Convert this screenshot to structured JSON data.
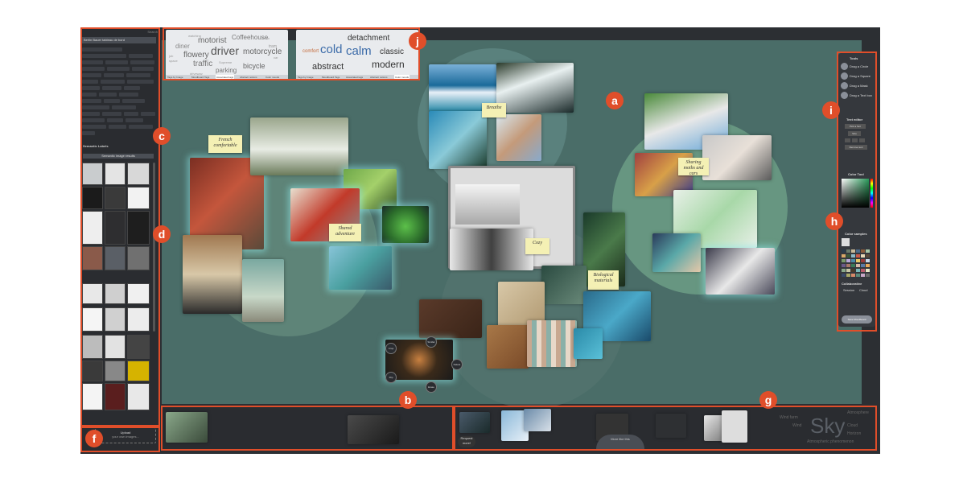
{
  "labels": {
    "a": "a",
    "b": "b",
    "c": "c",
    "d": "d",
    "f": "f",
    "g": "g",
    "h": "h",
    "i": "i",
    "j": "j"
  },
  "sidebar": {
    "header": "Search",
    "search_value": "Berlin Bauer tableau de bord",
    "semantic_labels": "Semantic Labels",
    "images_header": "Semantic image results",
    "upload_label": "Upload",
    "upload_sub": "your own images..."
  },
  "notes": {
    "french": "French comfortable",
    "shared": "Shared adventure",
    "breathe": "Breathe",
    "cozy": "Cozy",
    "biological": "Biological materials",
    "sharing": "Sharing moths and cars"
  },
  "wordcloud_left": {
    "words": [
      "watching",
      "motorist",
      "Coffeehouse",
      "diner",
      "driver",
      "motorcycle",
      "flowery",
      "traffic",
      "Supreme",
      "parking",
      "bicycle",
      "job",
      "space",
      "tram",
      "driveway",
      "car",
      "moto"
    ],
    "tabs": [
      "Tags by Image",
      "Moodboard Tags",
      "Associated tags",
      "Abstract notions",
      "Color moods"
    ]
  },
  "wordcloud_right": {
    "words": [
      "detachment",
      "cold",
      "calm",
      "comfort",
      "classic",
      "abstract",
      "modern"
    ],
    "tabs": [
      "Tags by Image",
      "Moodboard Tags",
      "Associated tags",
      "Abstract notions",
      "Color moods"
    ]
  },
  "radial_menu": {
    "items": [
      "Similar",
      "Crop",
      "Delete",
      "Flip",
      "Erase"
    ]
  },
  "right_panel": {
    "tools_title": "Tools",
    "tools": [
      "Drag a Circle",
      "Drag a Square",
      "Drag a Mask",
      "Drag a Text box"
    ],
    "text_editor": "Text editor",
    "font_label": "Pick a font",
    "size_label": "Size",
    "remove_label": "Remove text",
    "color_tool": "Color Tool",
    "color_samples": "Color samples",
    "collaborative": "Collaborative",
    "collab_opts": [
      "Session",
      "Cloud"
    ],
    "save_label": "Save Moodboard"
  },
  "bottom_right": {
    "request_label": "Request more!",
    "more_label": "More like this",
    "sky": "Sky",
    "words": [
      "Atmosphere",
      "Wind farm",
      "Cloud",
      "Wind",
      "Horizon",
      "Atmospheric phenomenon"
    ]
  },
  "colors": {
    "accent": "#e04e2a",
    "canvas": "#4a6d68",
    "panel": "#2a2c30"
  }
}
